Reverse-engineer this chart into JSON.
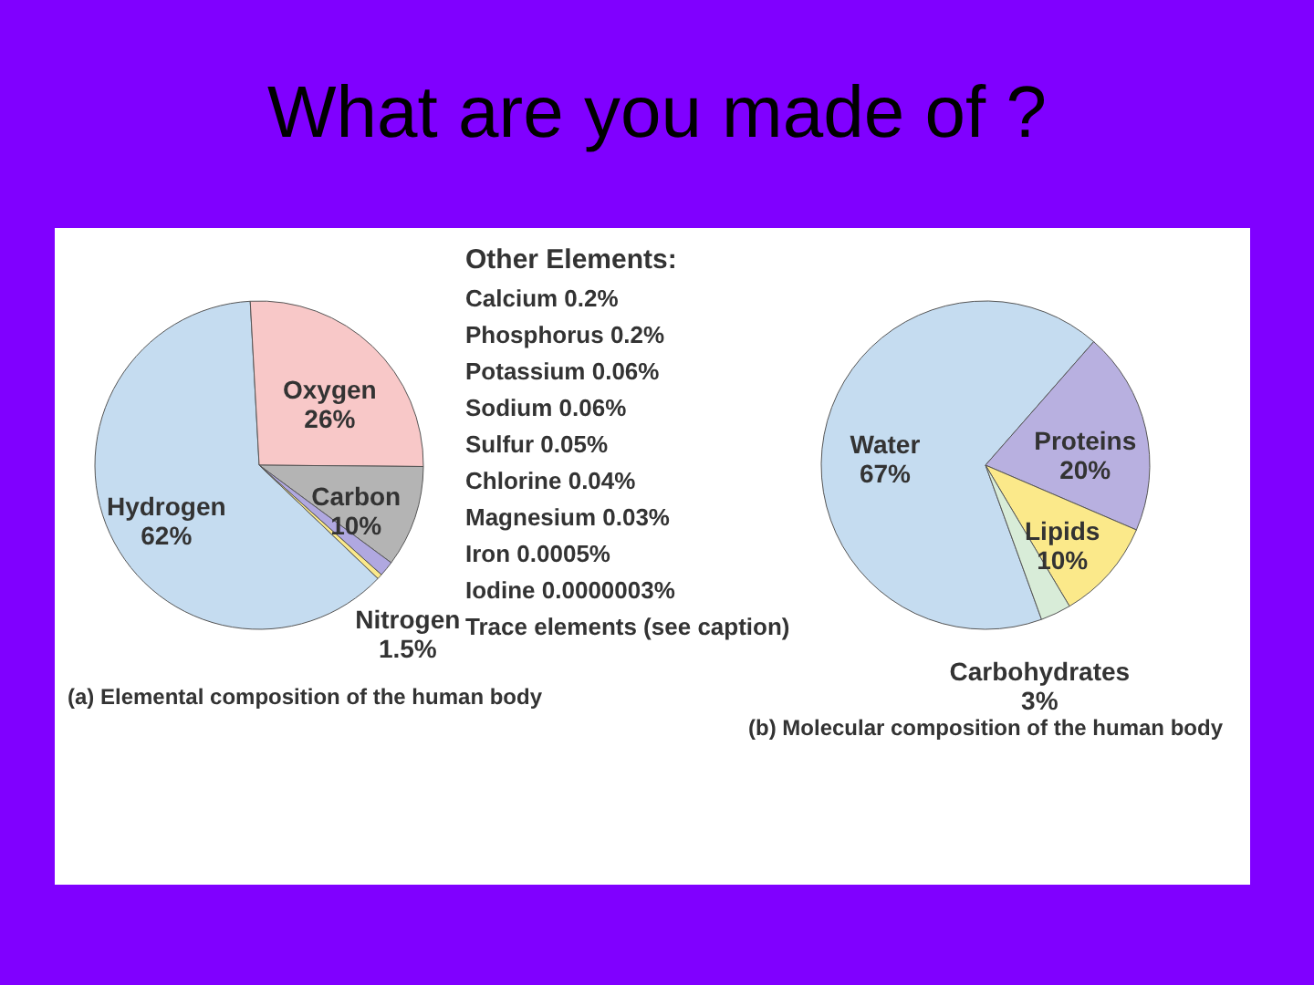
{
  "chart_data": [
    {
      "type": "pie",
      "title": "What are you made of ?",
      "categories": [
        "Hydrogen",
        "Oxygen",
        "Carbon",
        "Nitrogen",
        null
      ],
      "values": [
        62,
        26,
        10,
        1.5,
        0.5
      ],
      "value_labels": [
        "62%",
        "26%",
        "10%",
        "1.5%",
        null
      ],
      "colors": [
        "#c5dcf0",
        "#f8c8c8",
        "#b4b4b4",
        "#b0a8e0",
        "#fbe98a"
      ],
      "annotations": [
        "(a) Elemental composition of the human body"
      ]
    },
    {
      "type": "other",
      "title": "Other Elements:",
      "annotations": [
        "Calcium 0.2%",
        "Phosphorus 0.2%",
        "Potassium 0.06%",
        "Sodium 0.06%",
        "Sulfur 0.05%",
        "Chlorine 0.04%",
        "Magnesium 0.03%",
        "Iron 0.0005%",
        "Iodine 0.0000003%",
        "Trace elements (see caption)"
      ]
    },
    {
      "type": "pie",
      "categories": [
        "Water",
        "Proteins",
        "Lipids",
        "Carbohydrates"
      ],
      "values": [
        67,
        20,
        10,
        3
      ],
      "value_labels": [
        "67%",
        "20%",
        "10%",
        "3%"
      ],
      "colors": [
        "#c5dcf0",
        "#b8b0e0",
        "#fbe98a",
        "#d8ecd8"
      ],
      "annotations": [
        "(b) Molecular composition of the human body"
      ]
    }
  ]
}
